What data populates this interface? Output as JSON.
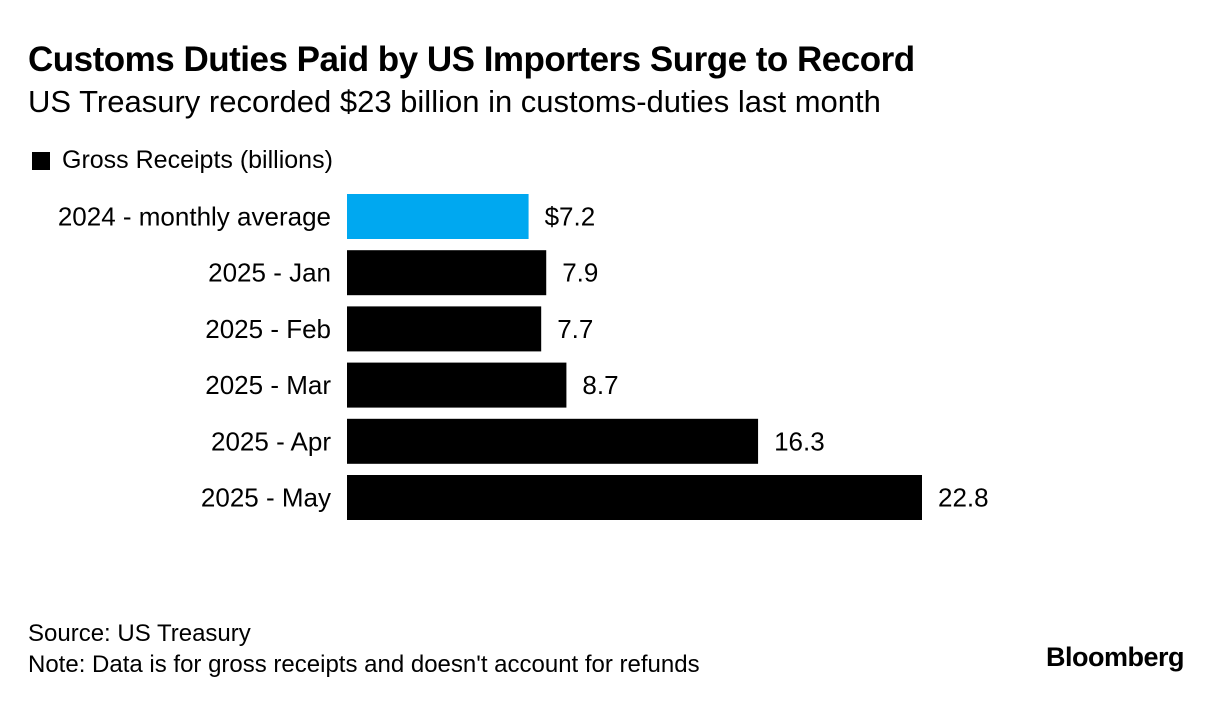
{
  "header": {
    "title": "Customs Duties Paid by US Importers Surge to Record",
    "subtitle": "US Treasury recorded $23 billion in customs-duties last month"
  },
  "chart_data": {
    "type": "bar",
    "orientation": "horizontal",
    "title": "Customs Duties Paid by US Importers Surge to Record",
    "subtitle": "US Treasury recorded $23 billion in customs-duties last month",
    "categories": [
      "2024 - monthly average",
      "2025 - Jan",
      "2025 - Feb",
      "2025 - Mar",
      "2025 - Apr",
      "2025 - May"
    ],
    "series": [
      {
        "name": "Gross Receipts (billions)",
        "values": [
          7.2,
          7.9,
          7.7,
          8.7,
          16.3,
          22.8
        ],
        "data_labels": [
          "$7.2",
          "7.9",
          "7.7",
          "8.7",
          "16.3",
          "22.8"
        ]
      }
    ],
    "colors": {
      "series": "#000000",
      "highlight": "#00A8F0",
      "highlight_index": 0
    },
    "xlim": [
      0,
      22.8
    ],
    "grid": false,
    "legend_position": "top-left"
  },
  "legend": {
    "label": "Gross Receipts (billions)",
    "color": "#000000"
  },
  "footer": {
    "source": "Source: US Treasury",
    "note": "Note: Data is for gross receipts and doesn't account for refunds"
  },
  "brand": {
    "name": "Bloomberg"
  }
}
